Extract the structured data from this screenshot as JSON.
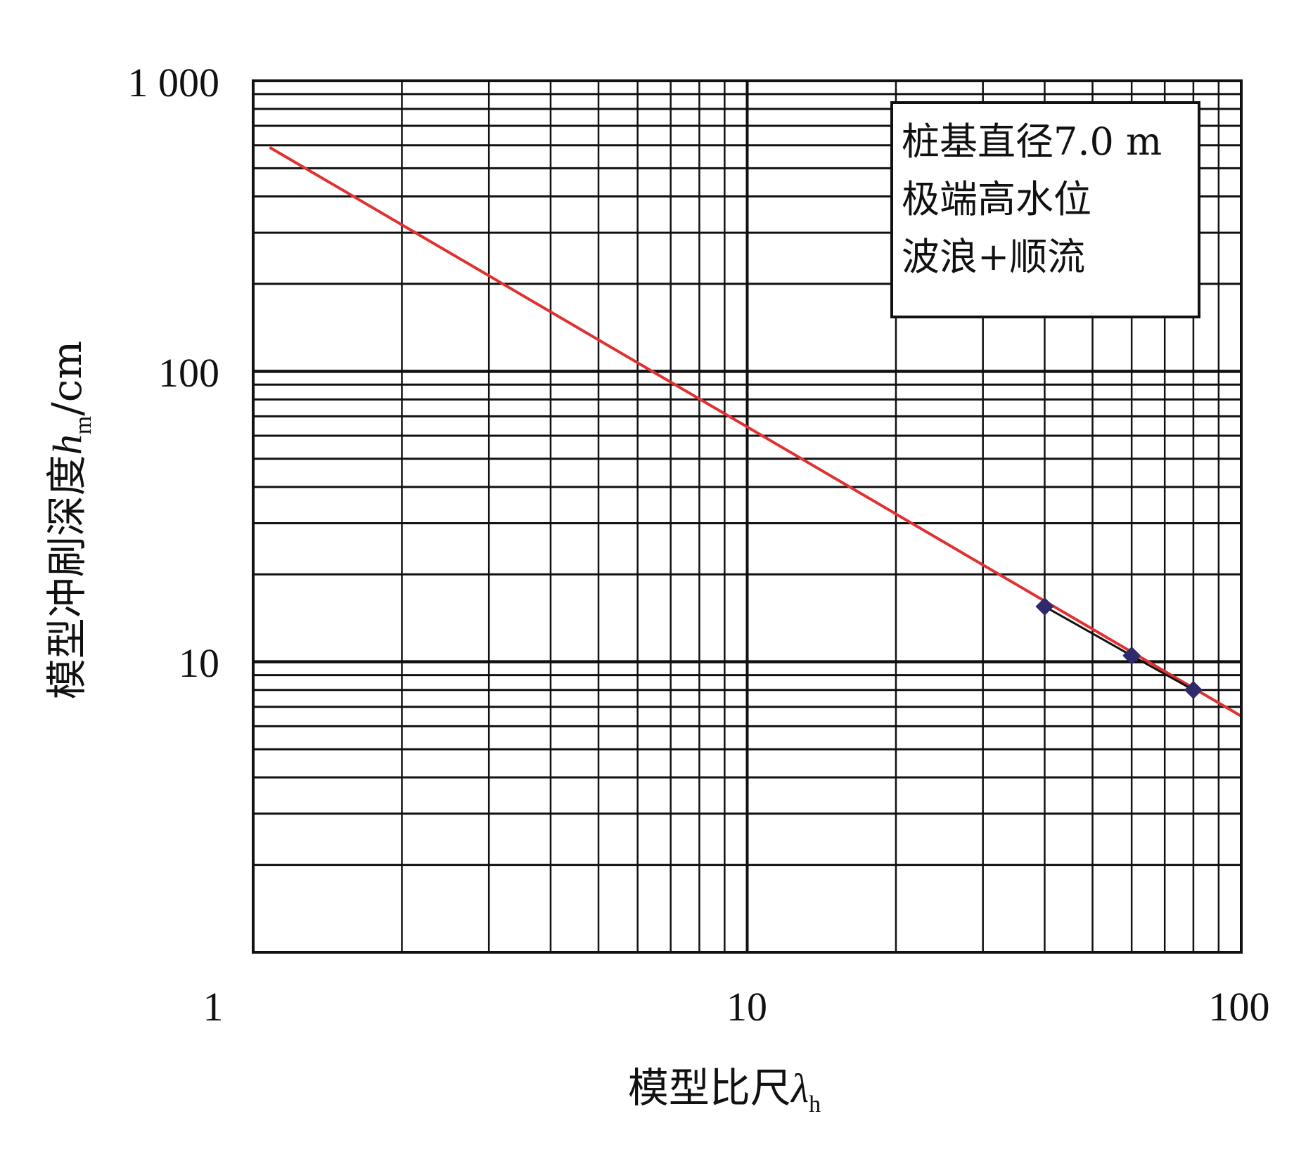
{
  "chart_data": {
    "type": "line",
    "x_scale": "log",
    "y_scale": "log",
    "xlim": [
      1,
      100
    ],
    "ylim": [
      1,
      1000
    ],
    "grid": true,
    "x_ticks": [
      "1",
      "10",
      "100"
    ],
    "y_ticks": [
      "1 000",
      "100",
      "10"
    ],
    "xlabel": {
      "main": "模型比尺",
      "symbol": "λ",
      "sub": "h"
    },
    "ylabel": {
      "main": "模型冲刷深度",
      "symbol": "h",
      "sub": "m",
      "unit": "/cm"
    },
    "annotation": [
      "桩基直径7.0 m",
      "极端高水位",
      "波浪+顺流"
    ],
    "series": [
      {
        "kind": "fit-line",
        "color": "#e03030",
        "x": [
          1.08,
          100
        ],
        "y": [
          590,
          6.5
        ]
      },
      {
        "kind": "measured",
        "color": "#2e2a6b",
        "line_color": "#111111",
        "x": [
          40,
          60,
          80
        ],
        "y": [
          15.5,
          10.5,
          8.0
        ]
      }
    ]
  }
}
